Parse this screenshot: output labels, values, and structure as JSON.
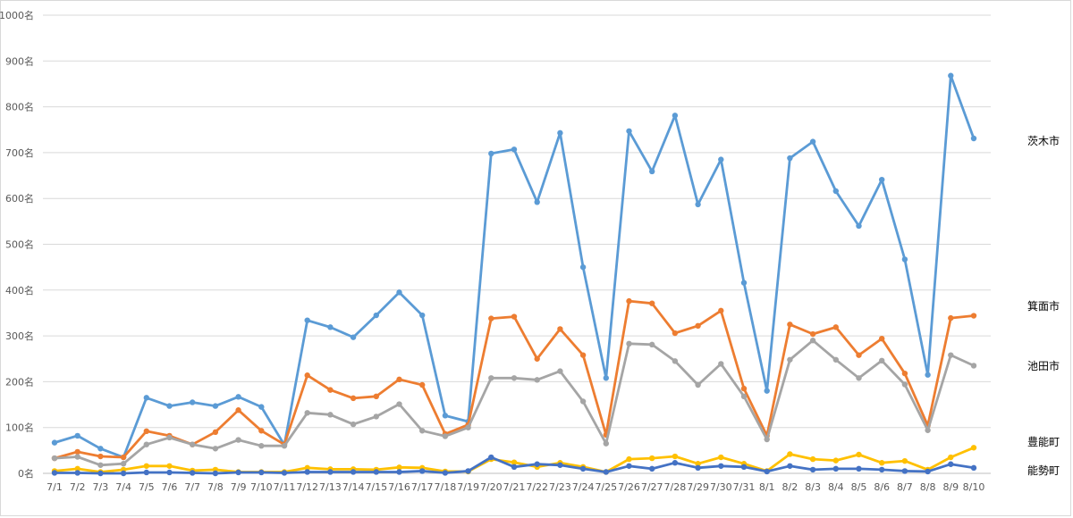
{
  "chart_data": {
    "type": "line",
    "title": "",
    "xlabel": "",
    "ylabel": "",
    "ylim": [
      0,
      1000
    ],
    "y_ticks": [
      "0名",
      "100名",
      "200名",
      "300名",
      "400名",
      "500名",
      "600名",
      "700名",
      "800名",
      "900名",
      "1000名"
    ],
    "grid": "horizontal",
    "legend_placement": "right",
    "categories": [
      "7/1",
      "7/2",
      "7/3",
      "7/4",
      "7/5",
      "7/6",
      "7/7",
      "7/8",
      "7/9",
      "7/10",
      "7/11",
      "7/12",
      "7/13",
      "7/14",
      "7/15",
      "7/16",
      "7/17",
      "7/18",
      "7/19",
      "7/20",
      "7/21",
      "7/22",
      "7/23",
      "7/24",
      "7/25",
      "7/26",
      "7/27",
      "7/28",
      "7/29",
      "7/30",
      "7/31",
      "8/1",
      "8/2",
      "8/3",
      "8/4",
      "8/5",
      "8/6",
      "8/7",
      "8/8",
      "8/9",
      "8/10"
    ],
    "series": [
      {
        "name": "茨木市",
        "color": "#5B9BD5",
        "values": [
          67,
          82,
          54,
          35,
          165,
          147,
          155,
          147,
          167,
          145,
          62,
          334,
          319,
          297,
          345,
          395,
          345,
          126,
          113,
          698,
          707,
          592,
          743,
          450,
          208,
          747,
          659,
          781,
          587,
          685,
          416,
          180,
          688,
          724,
          616,
          540,
          641,
          467,
          215,
          868,
          731
        ]
      },
      {
        "name": "箕面市",
        "color": "#ED7D31",
        "values": [
          33,
          47,
          37,
          35,
          92,
          82,
          63,
          90,
          138,
          93,
          63,
          214,
          182,
          164,
          168,
          205,
          193,
          86,
          106,
          338,
          342,
          250,
          315,
          258,
          84,
          376,
          371,
          306,
          322,
          355,
          185,
          82,
          325,
          304,
          319,
          258,
          294,
          218,
          104,
          339,
          344
        ]
      },
      {
        "name": "池田市",
        "color": "#A5A5A5",
        "values": [
          33,
          36,
          18,
          21,
          63,
          78,
          63,
          54,
          73,
          60,
          60,
          132,
          128,
          107,
          124,
          151,
          93,
          81,
          100,
          208,
          208,
          204,
          223,
          157,
          65,
          283,
          281,
          245,
          193,
          239,
          168,
          74,
          248,
          290,
          248,
          208,
          246,
          194,
          94,
          258,
          235
        ]
      },
      {
        "name": "豊能町",
        "color": "#FFC000",
        "values": [
          5,
          10,
          3,
          8,
          16,
          16,
          6,
          8,
          3,
          3,
          3,
          12,
          9,
          9,
          8,
          13,
          12,
          4,
          4,
          31,
          24,
          14,
          23,
          14,
          3,
          31,
          33,
          37,
          21,
          35,
          21,
          5,
          42,
          31,
          28,
          41,
          23,
          27,
          8,
          35,
          56
        ]
      },
      {
        "name": "能勢町",
        "color": "#4472C4",
        "values": [
          1,
          1,
          0,
          0,
          2,
          2,
          1,
          0,
          2,
          2,
          1,
          3,
          3,
          3,
          3,
          3,
          5,
          1,
          5,
          35,
          14,
          20,
          18,
          10,
          3,
          16,
          10,
          23,
          12,
          16,
          14,
          4,
          16,
          8,
          10,
          10,
          8,
          5,
          4,
          20,
          12
        ]
      }
    ]
  }
}
